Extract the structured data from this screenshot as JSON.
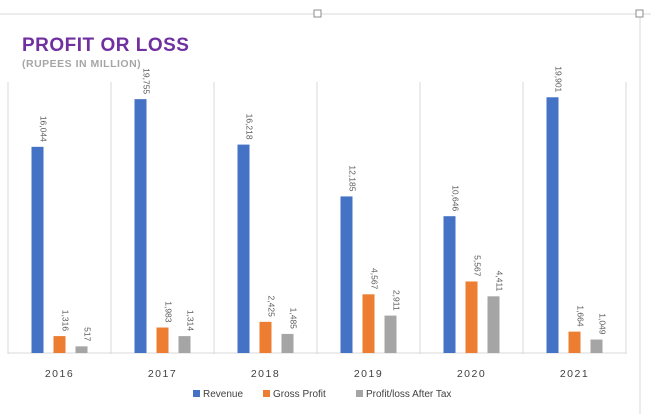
{
  "chart_data": {
    "type": "bar",
    "title": "PROFIT OR LOSS",
    "subtitle": "(RUPEES IN MILLION)",
    "categories": [
      "2016",
      "2017",
      "2018",
      "2019",
      "2020",
      "2021"
    ],
    "series": [
      {
        "name": "Revenue",
        "color": "#4472c4",
        "values": [
          16044,
          19755,
          16218,
          12185,
          10646,
          19901
        ],
        "labels": [
          "16,044",
          "19,755",
          "16,218",
          "12,185",
          "10,646",
          "19,901"
        ]
      },
      {
        "name": "Gross Profit",
        "color": "#ed7d31",
        "values": [
          1316,
          1983,
          2425,
          4567,
          5567,
          1664
        ],
        "labels": [
          "1,316",
          "1,983",
          "2,425",
          "4,567",
          "5,567",
          "1,664"
        ]
      },
      {
        "name": "Profit/loss After Tax",
        "color": "#a5a5a5",
        "values": [
          517,
          1314,
          1485,
          2911,
          4411,
          1049
        ],
        "labels": [
          "517",
          "1,314",
          "1,485",
          "2,911",
          "4,411",
          "1,049"
        ]
      }
    ],
    "ylim": [
      0,
      20000
    ],
    "grid": false,
    "legend": "bottom"
  }
}
